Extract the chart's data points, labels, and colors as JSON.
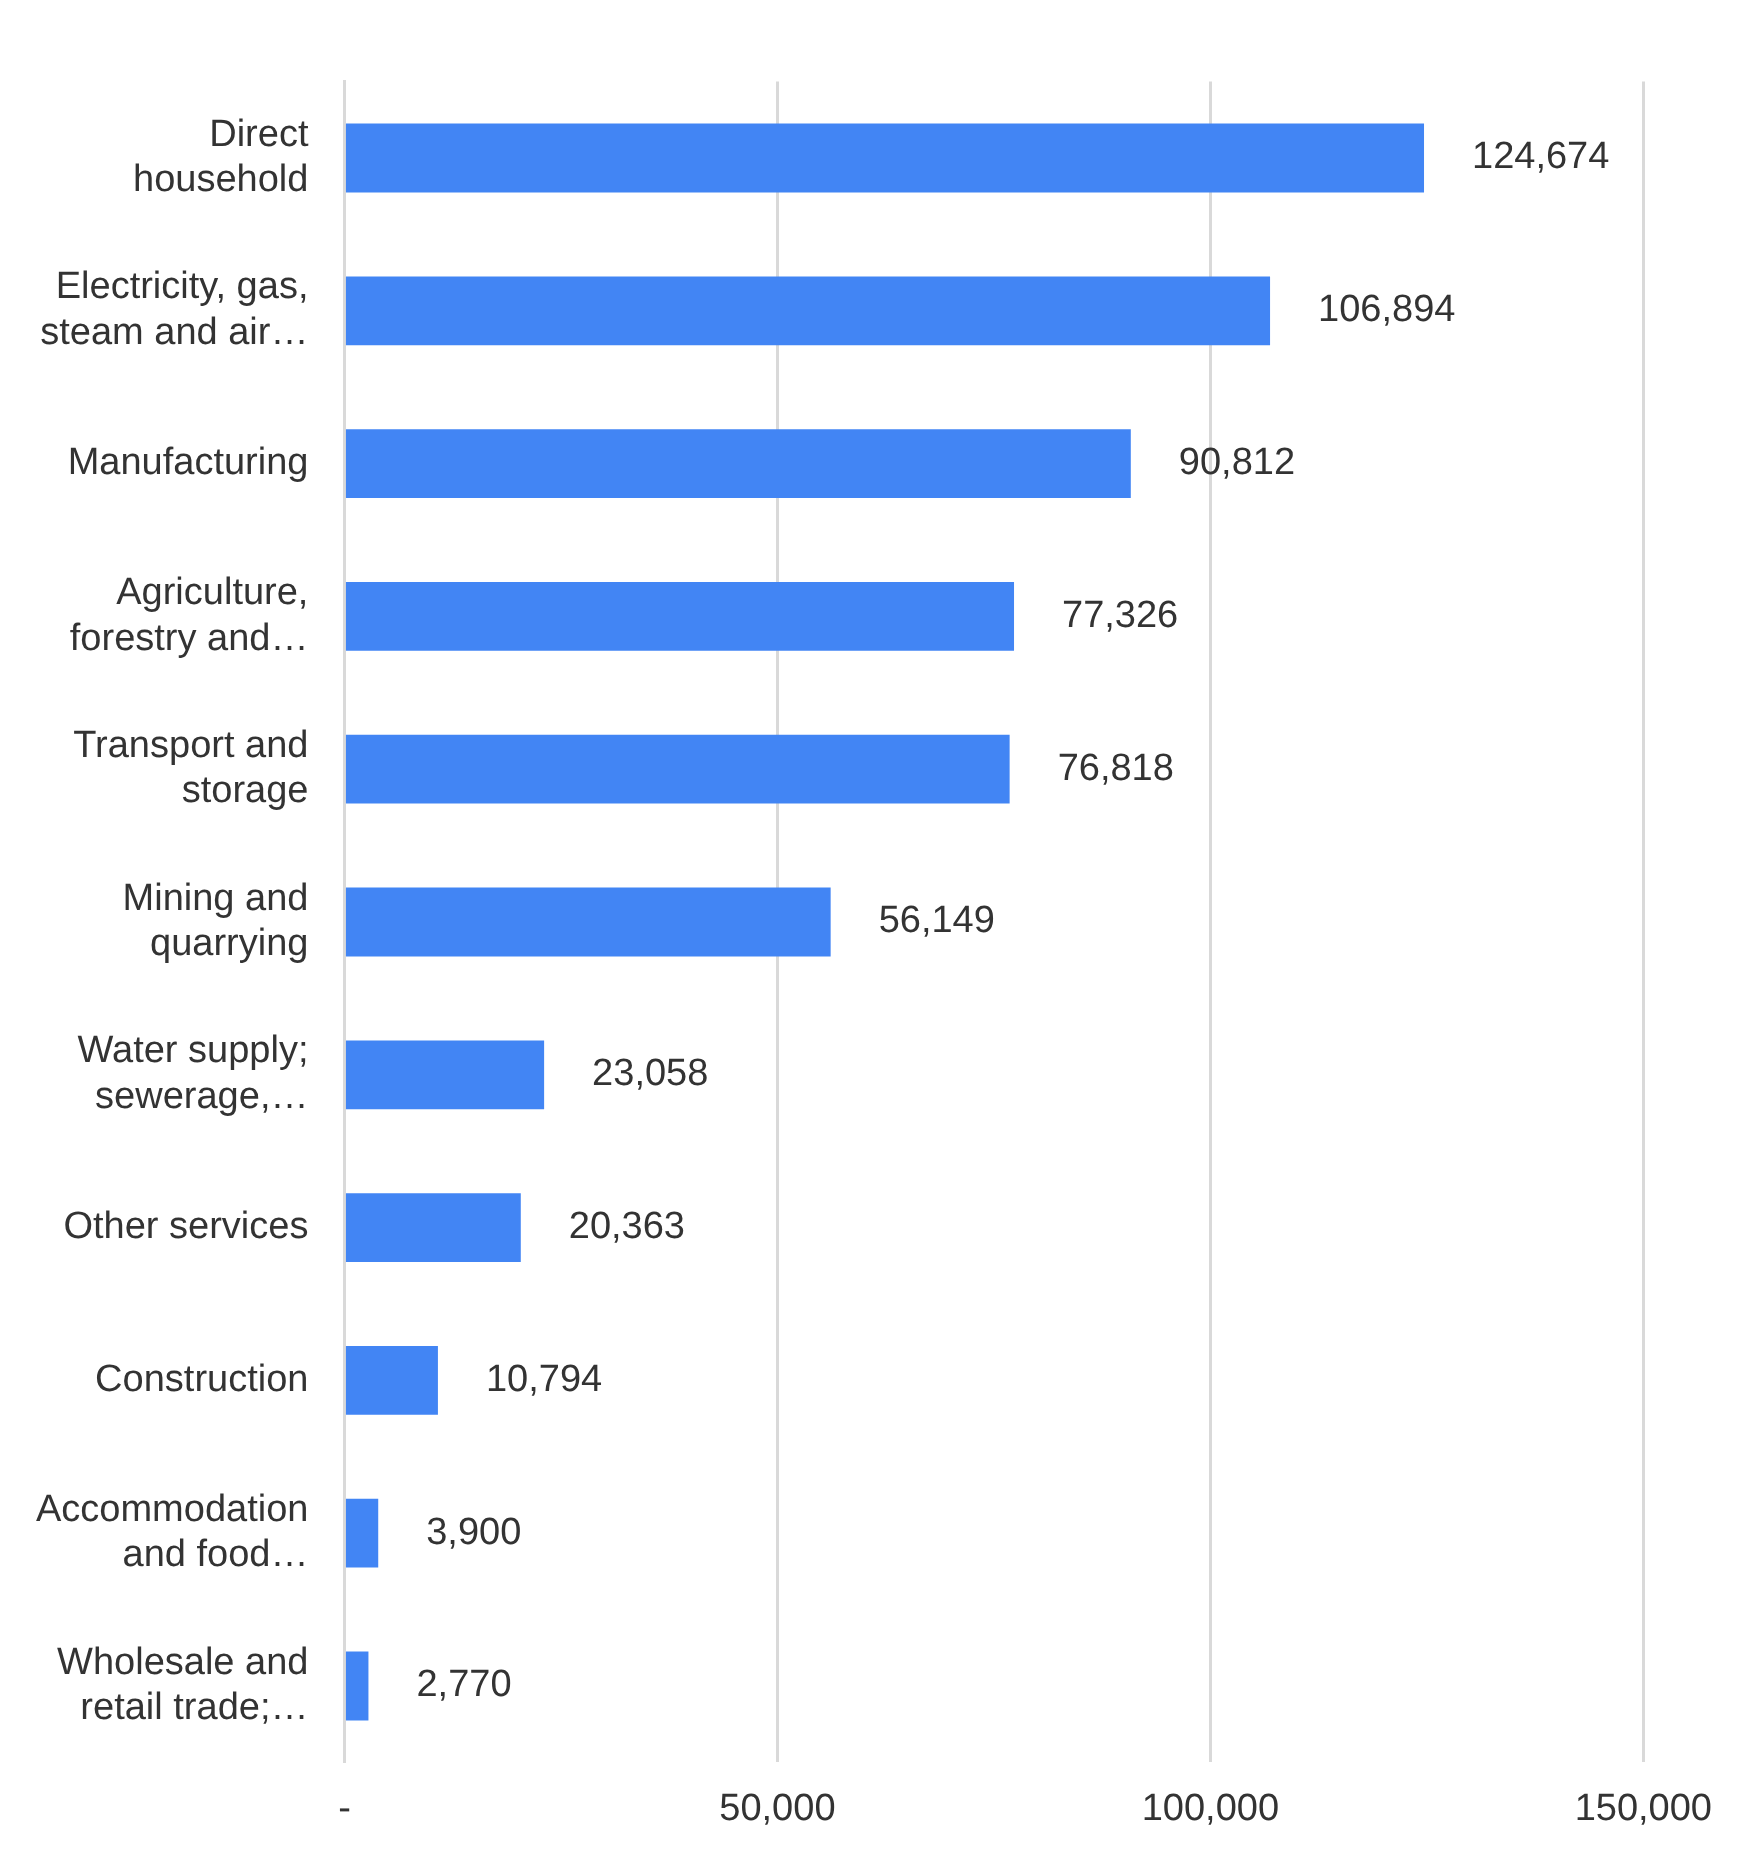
{
  "chart_data": {
    "type": "bar",
    "orientation": "horizontal",
    "categories": [
      "Direct\nhousehold",
      "Electricity, gas,\nsteam and air…",
      "Manufacturing",
      "Agriculture,\nforestry and…",
      "Transport and\nstorage",
      "Mining and\nquarrying",
      "Water supply;\nsewerage,…",
      "Other services",
      "Construction",
      "Accommodation\nand food…",
      "Wholesale and\nretail trade;…"
    ],
    "values": [
      124674,
      106894,
      90812,
      77326,
      76818,
      56149,
      23058,
      20363,
      10794,
      3900,
      2770
    ],
    "value_labels": [
      "124,674",
      "106,894",
      "90,812",
      "77,326",
      "76,818",
      "56,149",
      "23,058",
      "20,363",
      "10,794",
      "3,900",
      "2,770"
    ],
    "color": "#4285f4",
    "xlim": [
      0,
      150000
    ],
    "xticks": [
      {
        "value": 0,
        "label": "-"
      },
      {
        "value": 50000,
        "label": "50,000"
      },
      {
        "value": 100000,
        "label": "100,000"
      },
      {
        "value": 150000,
        "label": "150,000"
      }
    ],
    "grid": "x",
    "legend": false
  }
}
